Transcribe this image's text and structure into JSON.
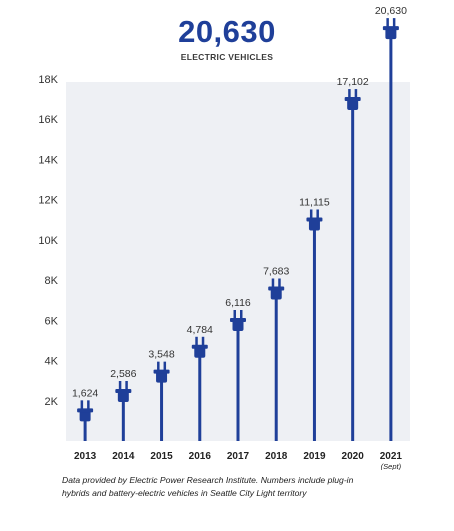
{
  "header": {
    "total": "20,630",
    "subtitle": "ELECTRIC VEHICLES"
  },
  "chart_data": {
    "type": "bar",
    "categories": [
      "2013",
      "2014",
      "2015",
      "2016",
      "2017",
      "2018",
      "2019",
      "2020",
      "2021"
    ],
    "category_notes": [
      "",
      "",
      "",
      "",
      "",
      "",
      "",
      "",
      "(Sept)"
    ],
    "values": [
      1624,
      2586,
      3548,
      4784,
      6116,
      7683,
      11115,
      17102,
      20630
    ],
    "value_labels": [
      "1,624",
      "2,586",
      "3,548",
      "4,784",
      "6,116",
      "7,683",
      "11,115",
      "17,102",
      "20,630"
    ],
    "ylim": [
      0,
      18000
    ],
    "yticks": [
      2000,
      4000,
      6000,
      8000,
      10000,
      12000,
      14000,
      16000,
      18000
    ],
    "ytick_labels": [
      "2K",
      "4K",
      "6K",
      "8K",
      "10K",
      "12K",
      "14K",
      "16K",
      "18K"
    ],
    "grid": false,
    "mark": "plug",
    "bar_color": "#1f3f99",
    "plot_background": "#eef0f4"
  },
  "footnote": {
    "line1": "Data provided by Electric Power Research Institute. Numbers include plug-in",
    "line2": "hybrids and battery-electric vehicles in Seattle City Light territory"
  }
}
